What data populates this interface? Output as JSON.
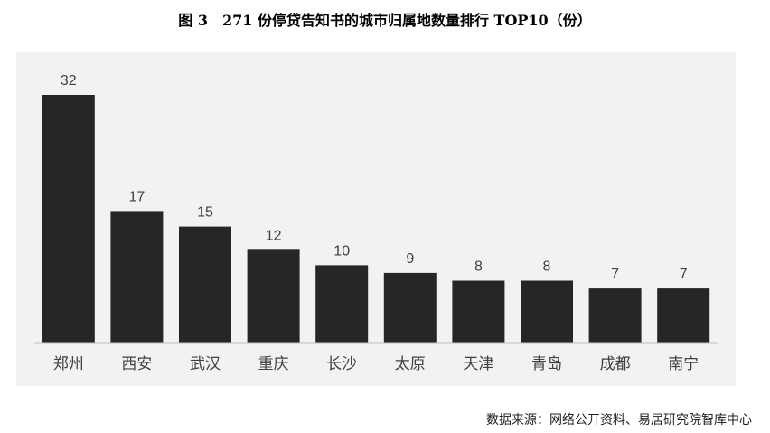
{
  "title": "图 3　271 份停贷告知书的城市归属地数量排行 TOP10（份）",
  "source": "数据来源：网络公开资料、易居研究院智库中心",
  "colors": {
    "bar": "#262626",
    "panel": "#f2f2f2",
    "axis": "#bfbfbf",
    "label": "#404040"
  },
  "chart_data": {
    "type": "bar",
    "title": "图 3　271 份停贷告知书的城市归属地数量排行 TOP10（份）",
    "xlabel": "",
    "ylabel": "",
    "categories": [
      "郑州",
      "西安",
      "武汉",
      "重庆",
      "长沙",
      "太原",
      "天津",
      "青岛",
      "成都",
      "南宁"
    ],
    "values": [
      32,
      17,
      15,
      12,
      10,
      9,
      8,
      8,
      7,
      7
    ],
    "ylim": [
      0,
      32
    ],
    "grid": false,
    "legend": "none",
    "data_labels": true
  }
}
